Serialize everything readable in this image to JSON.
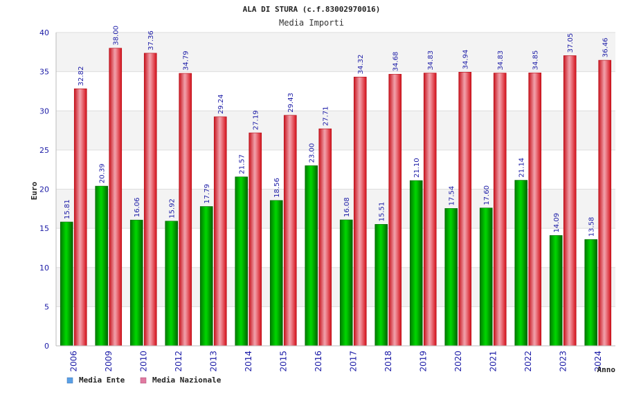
{
  "chart_data": {
    "type": "bar",
    "title": "ALA DI STURA (c.f.83002970016)",
    "subtitle": "Media Importi",
    "ylabel": "Euro",
    "xlabel": "Anno",
    "ylim": [
      0,
      40
    ],
    "yticks": [
      0,
      5,
      10,
      15,
      20,
      25,
      30,
      35,
      40
    ],
    "categories": [
      "2006",
      "2009",
      "2010",
      "2012",
      "2013",
      "2014",
      "2015",
      "2016",
      "2017",
      "2018",
      "2019",
      "2020",
      "2021",
      "2022",
      "2023",
      "2024"
    ],
    "series": [
      {
        "name": "Media Ente",
        "color": "#00b400",
        "legend_color": "#5aa0e6",
        "values": [
          15.81,
          20.39,
          16.06,
          15.92,
          17.79,
          21.57,
          18.56,
          23.0,
          16.08,
          15.51,
          21.1,
          17.54,
          17.6,
          21.14,
          14.09,
          13.58
        ],
        "labels": [
          "15.81",
          "20.39",
          "16.06",
          "15.92",
          "17.79",
          "21.57",
          "18.56",
          "23.00",
          "16.08",
          "15.51",
          "21.10",
          "17.54",
          "17.60",
          "21.14",
          "14.09",
          "13.58"
        ]
      },
      {
        "name": "Media Nazionale",
        "color": "#e8141e",
        "legend_color": "#e07aa0",
        "values": [
          32.82,
          38.0,
          37.36,
          34.79,
          29.24,
          27.19,
          29.43,
          27.71,
          34.32,
          34.68,
          34.83,
          34.94,
          34.83,
          34.85,
          37.05,
          36.46
        ],
        "labels": [
          "32.82",
          "38.00",
          "37.36",
          "34.79",
          "29.24",
          "27.19",
          "29.43",
          "27.71",
          "34.32",
          "34.68",
          "34.83",
          "34.94",
          "34.83",
          "34.85",
          "37.05",
          "36.46"
        ]
      }
    ]
  }
}
